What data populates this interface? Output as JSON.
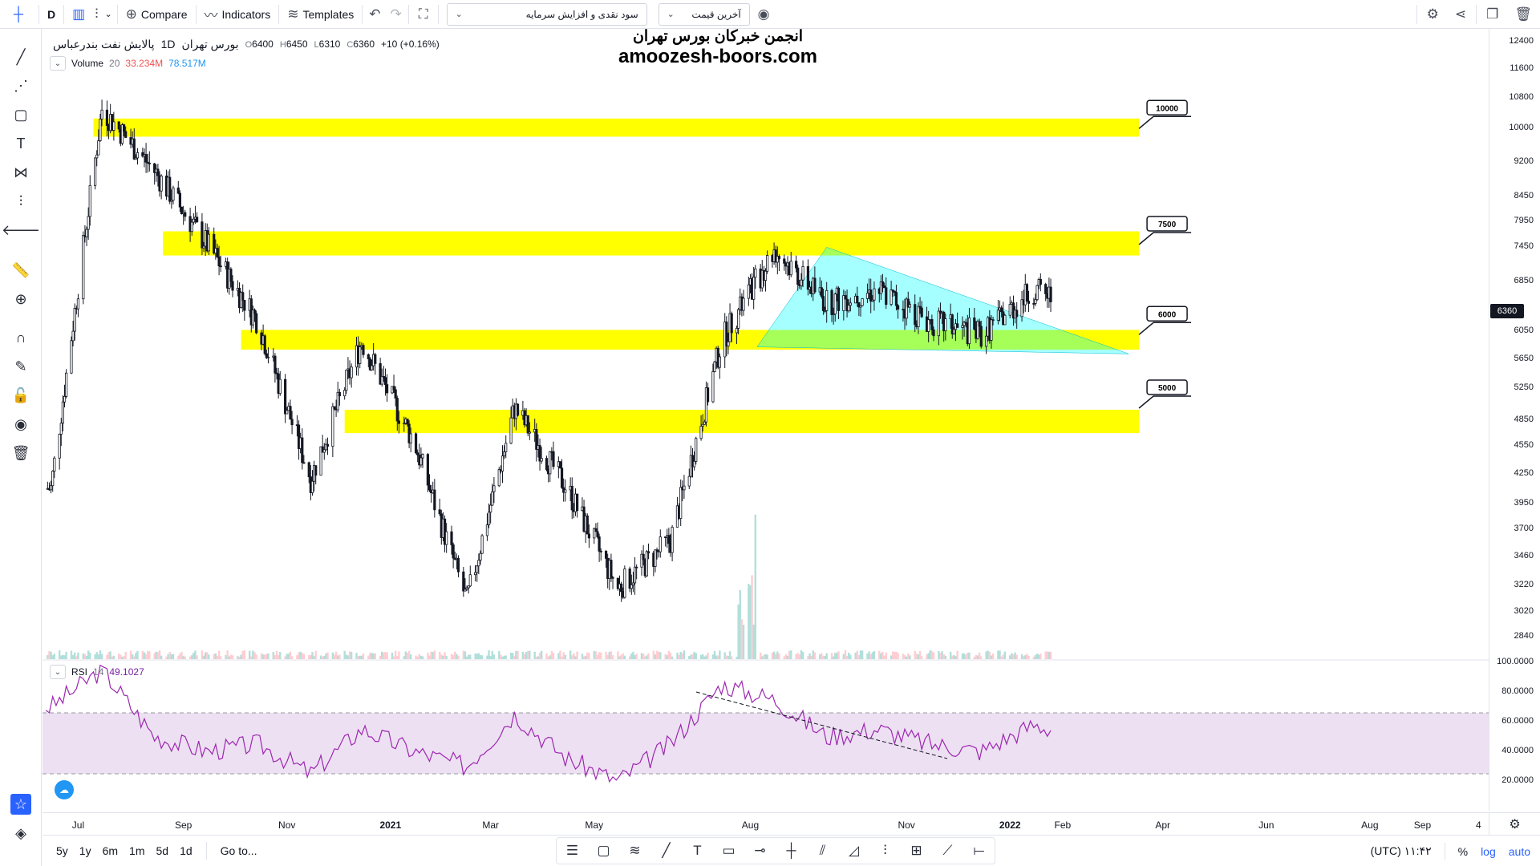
{
  "toolbar": {
    "interval": "D",
    "compare": "Compare",
    "indicators": "Indicators",
    "templates": "Templates",
    "dropdown_indicator": "سود نقدی و افزایش سرمایه",
    "dropdown_price": "آخرین قیمت"
  },
  "legend": {
    "symbol": "پالایش نفت بندرعباس",
    "timeframe": "1D",
    "exchange": "بورس تهران",
    "open_key": "O",
    "open": "6400",
    "high_key": "H",
    "high": "6450",
    "low_key": "L",
    "low": "6310",
    "close_key": "C",
    "close": "6360",
    "change": "+10 (+0.16%)",
    "volume_name": "Volume",
    "volume_len": "20",
    "volume_val1": "33.234M",
    "volume_val2": "78.517M",
    "rsi_name": "RSI",
    "rsi_len": "14",
    "rsi_val": "49.1027"
  },
  "watermark": {
    "line1": "انجمن خبرکان بورس تهران",
    "line2": "amoozesh-boors.com"
  },
  "price_scale": {
    "labels": [
      "12400",
      "11600",
      "10800",
      "10000",
      "9200",
      "8450",
      "7950",
      "7450",
      "6850",
      "6050",
      "5650",
      "5250",
      "4850",
      "4550",
      "4250",
      "3950",
      "3700",
      "3460",
      "3220",
      "3020",
      "2840"
    ],
    "last_price": "6360",
    "rsi_labels": [
      "100.0000",
      "80.0000",
      "60.0000",
      "40.0000",
      "20.0000"
    ]
  },
  "levels": [
    {
      "label": "10000",
      "price": 10000
    },
    {
      "label": "7500",
      "price": 7500
    },
    {
      "label": "6000",
      "price": 6000
    },
    {
      "label": "5000",
      "price": 5000
    }
  ],
  "time_axis": {
    "labels": [
      "Jul",
      "Sep",
      "Nov",
      "2021",
      "Mar",
      "May",
      "Aug",
      "Nov",
      "2022",
      "Feb",
      "Apr",
      "Jun",
      "Aug",
      "Sep",
      "4"
    ]
  },
  "bottom": {
    "ranges": [
      "5y",
      "1y",
      "6m",
      "1m",
      "5d",
      "1d"
    ],
    "goto": "Go to...",
    "clock": "۱۱:۴۲ (UTC)",
    "percent": "%",
    "log": "log",
    "auto": "auto"
  },
  "chart_data": {
    "type": "candlestick",
    "title": "پالایش نفت بندرعباس · 1D · بورس تهران",
    "ylim": [
      2700,
      12600
    ],
    "log_scale": true,
    "x_range": [
      "2020-06-10",
      "2022-10-10"
    ],
    "series": [
      {
        "name": "price (approx. monthly trace)",
        "x": [
          "2020-06",
          "2020-07",
          "2020-08",
          "2020-09",
          "2020-10",
          "2020-11",
          "2020-12",
          "2021-01",
          "2021-02",
          "2021-03",
          "2021-04",
          "2021-05",
          "2021-06",
          "2021-07",
          "2021-08",
          "2021-09",
          "2021-10",
          "2021-11",
          "2021-12",
          "2022-01",
          "2022-02"
        ],
        "values": [
          4100,
          10500,
          9000,
          7500,
          6200,
          4200,
          5900,
          4600,
          3100,
          5000,
          4100,
          3200,
          3600,
          5900,
          7400,
          6500,
          6700,
          6200,
          6000,
          6700,
          6360
        ]
      },
      {
        "name": "RSI 14 (approx.)",
        "x": [
          "2020-06",
          "2020-07",
          "2020-08",
          "2020-09",
          "2020-10",
          "2020-11",
          "2020-12",
          "2021-01",
          "2021-02",
          "2021-03",
          "2021-04",
          "2021-05",
          "2021-06",
          "2021-07",
          "2021-08",
          "2021-09",
          "2021-10",
          "2021-11",
          "2021-12",
          "2022-01",
          "2022-02"
        ],
        "values": [
          70,
          95,
          50,
          40,
          45,
          25,
          55,
          40,
          30,
          65,
          35,
          20,
          45,
          85,
          75,
          50,
          55,
          45,
          40,
          58,
          49
        ]
      }
    ],
    "horizontal_levels": [
      10000,
      7500,
      6000,
      5000
    ],
    "rsi_bands": [
      70,
      30
    ],
    "legend_position": "top-left"
  },
  "colors": {
    "zone": "#ffff00",
    "triangle": "#00ffff",
    "rsi_line": "#9c27b0",
    "rsi_band": "#ede0f2",
    "volume": "#b2dfdb"
  }
}
